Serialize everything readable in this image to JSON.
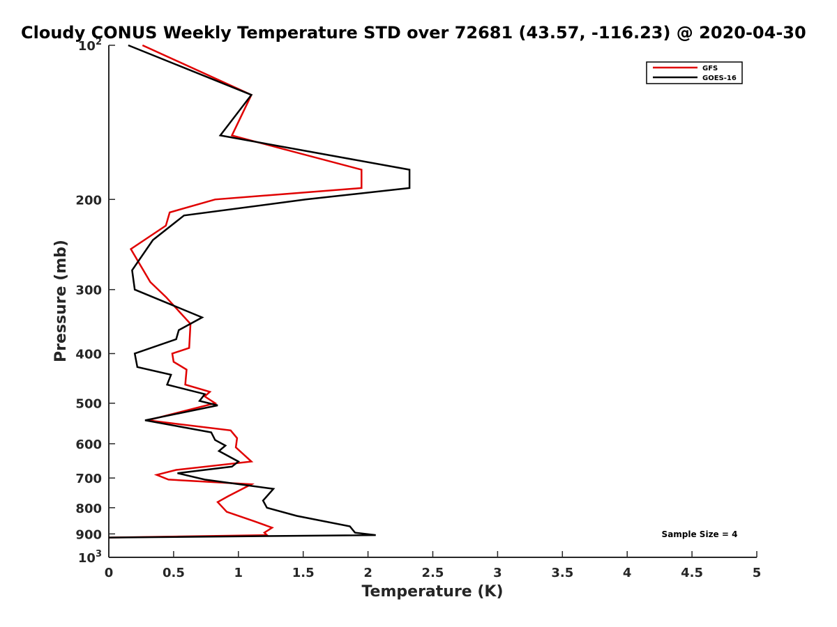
{
  "chart_data": {
    "type": "line",
    "title": "Cloudy CONUS Weekly Temperature STD over 72681 (43.57, -116.23) @ 2020-04-30",
    "xlabel": "Temperature (K)",
    "ylabel": "Pressure (mb)",
    "xlim": [
      0,
      5
    ],
    "ylim": [
      100,
      1000
    ],
    "y_scale": "log",
    "y_reversed": true,
    "grid": false,
    "legend_position": "top-right",
    "x_ticks": [
      "0",
      "0.5",
      "1",
      "1.5",
      "2",
      "2.5",
      "3",
      "3.5",
      "4",
      "4.5",
      "5"
    ],
    "y_ticks": [
      {
        "value": 100,
        "base": "10",
        "exp": "2"
      },
      {
        "value": 200,
        "label": "200"
      },
      {
        "value": 300,
        "label": "300"
      },
      {
        "value": 400,
        "label": "400"
      },
      {
        "value": 500,
        "label": "500"
      },
      {
        "value": 600,
        "label": "600"
      },
      {
        "value": 700,
        "label": "700"
      },
      {
        "value": 800,
        "label": "800"
      },
      {
        "value": 900,
        "label": "900"
      },
      {
        "value": 1000,
        "base": "10",
        "exp": "3"
      }
    ],
    "annotation": "Sample Size = 4",
    "series": [
      {
        "name": "GFS",
        "color": "#e00000",
        "points": [
          [
            0.26,
            100
          ],
          [
            1.1,
            125
          ],
          [
            0.95,
            150
          ],
          [
            1.95,
            175
          ],
          [
            1.95,
            190
          ],
          [
            0.82,
            200
          ],
          [
            0.47,
            212
          ],
          [
            0.44,
            225
          ],
          [
            0.17,
            250
          ],
          [
            0.32,
            290
          ],
          [
            0.44,
            310
          ],
          [
            0.63,
            350
          ],
          [
            0.62,
            390
          ],
          [
            0.49,
            400
          ],
          [
            0.5,
            415
          ],
          [
            0.6,
            430
          ],
          [
            0.59,
            460
          ],
          [
            0.78,
            475
          ],
          [
            0.74,
            485
          ],
          [
            0.82,
            500
          ],
          [
            0.3,
            540
          ],
          [
            0.94,
            565
          ],
          [
            0.99,
            585
          ],
          [
            0.98,
            610
          ],
          [
            1.1,
            650
          ],
          [
            0.52,
            675
          ],
          [
            0.37,
            690
          ],
          [
            0.46,
            705
          ],
          [
            1.1,
            720
          ],
          [
            0.92,
            760
          ],
          [
            0.84,
            780
          ],
          [
            0.91,
            815
          ],
          [
            1.12,
            850
          ],
          [
            1.26,
            875
          ],
          [
            1.2,
            895
          ],
          [
            1.22,
            905
          ],
          [
            0.0,
            915
          ]
        ]
      },
      {
        "name": "GOES-16",
        "color": "#000000",
        "points": [
          [
            0.15,
            100
          ],
          [
            1.1,
            125
          ],
          [
            0.86,
            150
          ],
          [
            2.32,
            175
          ],
          [
            2.32,
            190
          ],
          [
            1.52,
            200
          ],
          [
            0.58,
            215
          ],
          [
            0.34,
            240
          ],
          [
            0.18,
            275
          ],
          [
            0.2,
            300
          ],
          [
            0.72,
            340
          ],
          [
            0.54,
            360
          ],
          [
            0.52,
            375
          ],
          [
            0.2,
            400
          ],
          [
            0.22,
            425
          ],
          [
            0.48,
            440
          ],
          [
            0.45,
            460
          ],
          [
            0.74,
            480
          ],
          [
            0.7,
            495
          ],
          [
            0.84,
            505
          ],
          [
            0.28,
            540
          ],
          [
            0.79,
            570
          ],
          [
            0.82,
            590
          ],
          [
            0.9,
            605
          ],
          [
            0.85,
            620
          ],
          [
            1.0,
            650
          ],
          [
            0.95,
            665
          ],
          [
            0.53,
            685
          ],
          [
            0.74,
            705
          ],
          [
            1.27,
            735
          ],
          [
            1.19,
            775
          ],
          [
            1.22,
            800
          ],
          [
            1.45,
            830
          ],
          [
            1.86,
            870
          ],
          [
            1.9,
            895
          ],
          [
            2.06,
            905
          ],
          [
            0.0,
            915
          ]
        ]
      }
    ]
  }
}
